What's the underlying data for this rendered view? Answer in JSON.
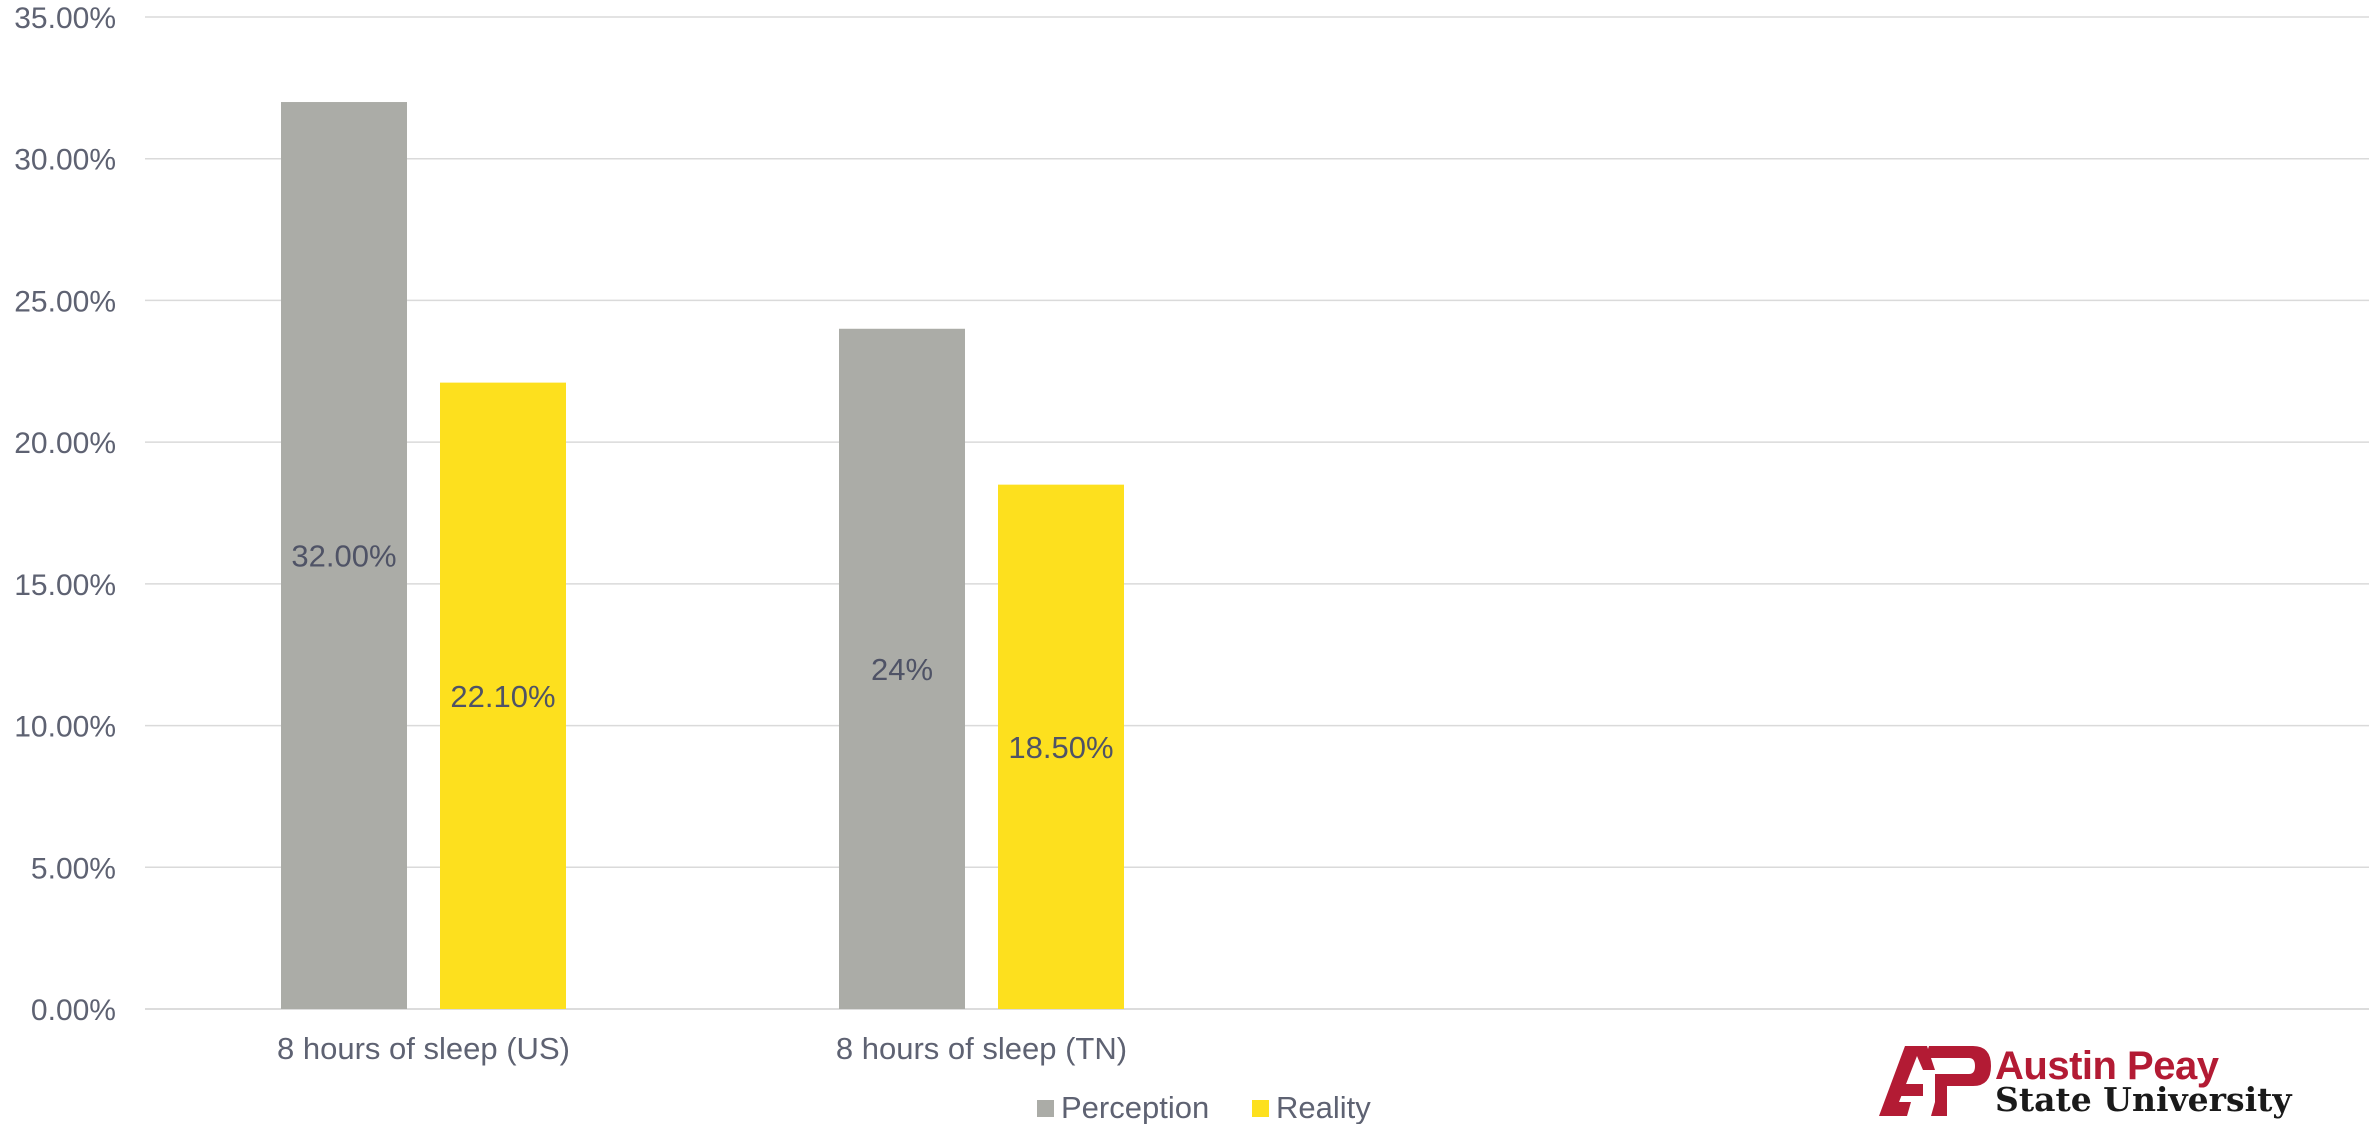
{
  "chart_data": {
    "type": "bar",
    "categories": [
      "8 hours of sleep (US)",
      "8 hours of sleep (TN)"
    ],
    "series": [
      {
        "name": "Perception",
        "values": [
          32.0,
          24.0
        ],
        "data_labels": [
          "32.00%",
          "24%"
        ],
        "color": "#abaca7"
      },
      {
        "name": "Reality",
        "values": [
          22.1,
          18.5
        ],
        "data_labels": [
          "22.10%",
          "18.50%"
        ],
        "color": "#fde01e"
      }
    ],
    "ylim": [
      0,
      35
    ],
    "yticks": [
      0,
      5,
      10,
      15,
      20,
      25,
      30,
      35
    ],
    "ytick_labels": [
      "0.00%",
      "5.00%",
      "10.00%",
      "15.00%",
      "20.00%",
      "25.00%",
      "30.00%",
      "35.00%"
    ],
    "grid": true,
    "legend_position": "bottom",
    "title": "",
    "xlabel": "",
    "ylabel": ""
  },
  "logo": {
    "mark": "AP",
    "line1": "Austin Peay",
    "line2": "State University",
    "colors": {
      "red": "#b31b34",
      "dark": "#1a1a1a"
    }
  }
}
